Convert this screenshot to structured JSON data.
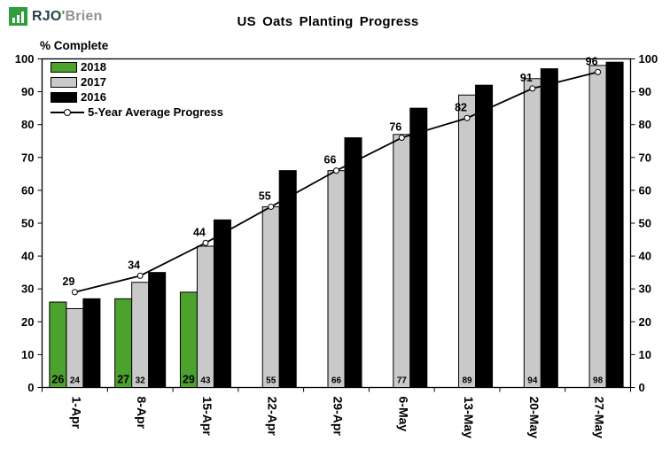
{
  "logo": {
    "text_primary": "RJO",
    "apostrophe": "'",
    "text_secondary": "Brien",
    "icon_color": "#2f9e3f"
  },
  "title": "US Oats Planting Progress",
  "y_axis_title": "% Complete",
  "legend": {
    "position": "top-left-inside",
    "items": [
      {
        "label": "2018",
        "type": "bar",
        "color": "#4ca22c"
      },
      {
        "label": "2017",
        "type": "bar",
        "color": "#c9c9c9"
      },
      {
        "label": "2016",
        "type": "bar",
        "color": "#000000"
      },
      {
        "label": "5-Year Average Progress",
        "type": "line",
        "color": "#000000"
      }
    ]
  },
  "chart_data": {
    "type": "bar",
    "title": "US Oats Planting Progress",
    "ylabel": "% Complete",
    "xlabel": "",
    "ylim": [
      0,
      100
    ],
    "ytick_interval": 10,
    "grid": false,
    "legend_position": "top-left-inside",
    "categories": [
      "1-Apr",
      "8-Apr",
      "15-Apr",
      "22-Apr",
      "29-Apr",
      "6-May",
      "13-May",
      "20-May",
      "27-May"
    ],
    "series": [
      {
        "name": "2018",
        "type": "bar",
        "color": "#4ca22c",
        "values": [
          26,
          27,
          29,
          null,
          null,
          null,
          null,
          null,
          null
        ],
        "show_value_labels": true,
        "label_style": "bold-base"
      },
      {
        "name": "2017",
        "type": "bar",
        "color": "#c9c9c9",
        "values": [
          24,
          32,
          43,
          55,
          66,
          77,
          89,
          94,
          98
        ],
        "show_value_labels": true,
        "label_style": "small-base"
      },
      {
        "name": "2016",
        "type": "bar",
        "color": "#000000",
        "values": [
          27,
          35,
          51,
          66,
          76,
          85,
          92,
          97,
          99
        ],
        "show_value_labels": false
      },
      {
        "name": "5-Year Average Progress",
        "type": "line",
        "color": "#000000",
        "marker": "circle-open",
        "values": [
          29,
          34,
          44,
          55,
          66,
          76,
          82,
          91,
          96
        ],
        "show_value_labels": true,
        "label_style": "above"
      }
    ]
  }
}
